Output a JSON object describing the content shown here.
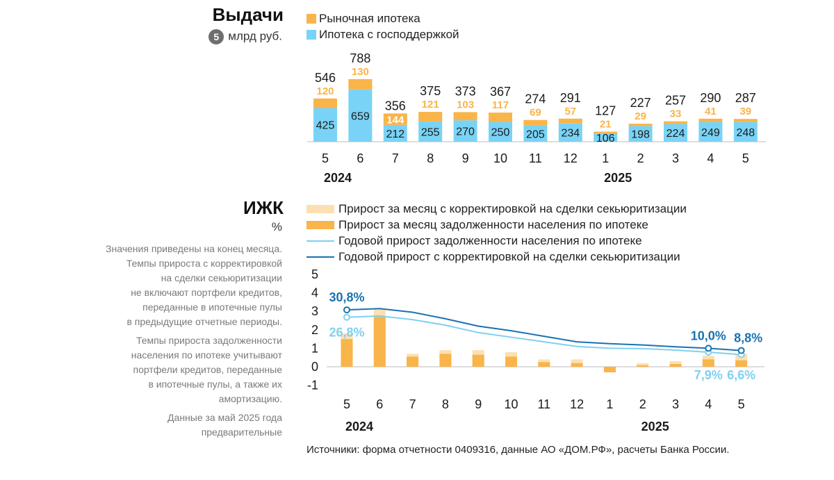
{
  "colors": {
    "market": "#f9b44a",
    "subsidized": "#79d3f6",
    "monthly_adjusted": "#fde0b2",
    "monthly": "#f9b44a",
    "yearly_light": "#7fd0f0",
    "yearly_dark": "#1a72b0",
    "axis": "#b0b0b0"
  },
  "issuance": {
    "title": "Выдачи",
    "badge": "5",
    "unit": "млрд руб.",
    "legend": [
      "Рыночная ипотека",
      "Ипотека с господдержкой"
    ]
  },
  "izhk": {
    "title": "ИЖК",
    "unit": "%",
    "legend": [
      "Прирост за месяц с корректировкой на сделки секьюритизации",
      "Прирост за месяц задолженности населения по ипотеке",
      "Годовой прирост задолженности населения по ипотеке",
      "Годовой прирост с корректировкой на сделки секьюритизации"
    ],
    "notes": [
      [
        "Значения приведены на конец месяца.",
        "Темпы прироста с корректировкой",
        "на сделки секьюритизации",
        "не включают портфели кредитов,",
        "переданные в ипотечные пулы",
        "в предыдущие отчетные периоды."
      ],
      [
        "Темпы прироста задолженности",
        "населения по ипотеке учитывают",
        "портфели кредитов, переданные",
        "в ипотечные пулы, а также их",
        "амортизацию."
      ],
      [
        "Данные за май 2025 года",
        "предварительные"
      ]
    ]
  },
  "source": "Источники: форма отчетности 0409316, данные АО «ДОМ.РФ», расчеты Банка России.",
  "chart_data": [
    {
      "type": "bar",
      "title": "Выдачи",
      "ylabel": "млрд руб.",
      "categories": [
        "5",
        "6",
        "7",
        "8",
        "9",
        "10",
        "11",
        "12",
        "1",
        "2",
        "3",
        "4",
        "5"
      ],
      "year_labels": [
        {
          "label": "2024",
          "category_index": 0
        },
        {
          "label": "2025",
          "category_index": 8
        }
      ],
      "stacked": true,
      "series": [
        {
          "name": "Ипотека с господдержкой",
          "values": [
            425,
            659,
            212,
            255,
            270,
            250,
            205,
            234,
            106,
            198,
            224,
            249,
            248
          ]
        },
        {
          "name": "Рыночная ипотека",
          "values": [
            120,
            130,
            144,
            121,
            103,
            117,
            69,
            57,
            21,
            29,
            33,
            41,
            39
          ]
        }
      ],
      "totals": [
        546,
        788,
        356,
        375,
        373,
        367,
        274,
        291,
        127,
        227,
        257,
        290,
        287
      ],
      "ylim": [
        0,
        800
      ]
    },
    {
      "type": "bar+line",
      "title": "ИЖК",
      "ylabel": "%",
      "categories": [
        "5",
        "6",
        "7",
        "8",
        "9",
        "10",
        "11",
        "12",
        "1",
        "2",
        "3",
        "4",
        "5"
      ],
      "year_labels": [
        {
          "label": "2024",
          "category_index": 0
        },
        {
          "label": "2025",
          "category_index": 9
        }
      ],
      "yticks": [
        -1,
        0,
        1,
        2,
        3,
        4,
        5
      ],
      "ylim": [
        -1,
        5
      ],
      "bars": [
        {
          "name": "Прирост за месяц с корректировкой на сделки секьюритизации",
          "values": [
            1.8,
            3.1,
            0.7,
            0.9,
            0.9,
            0.8,
            0.4,
            0.4,
            -0.2,
            0.2,
            0.3,
            0.6,
            0.7
          ]
        },
        {
          "name": "Прирост за месяц задолженности населения по ипотеке",
          "values": [
            1.5,
            2.7,
            0.55,
            0.7,
            0.65,
            0.55,
            0.25,
            0.2,
            -0.3,
            0.08,
            0.15,
            0.4,
            0.35
          ]
        }
      ],
      "lines": [
        {
          "name": "Годовой прирост задолженности населения по ипотеке",
          "values": [
            2.68,
            2.75,
            2.55,
            2.25,
            1.85,
            1.6,
            1.35,
            1.1,
            1.0,
            0.98,
            0.9,
            0.79,
            0.66
          ],
          "annotations": [
            {
              "category_index": 0,
              "label": "26,8%"
            },
            {
              "category_index": 11,
              "label": "7,9%"
            },
            {
              "category_index": 12,
              "label": "6,6%"
            }
          ]
        },
        {
          "name": "Годовой прирост с корректировкой на сделки секьюритизации",
          "values": [
            3.08,
            3.15,
            2.95,
            2.6,
            2.2,
            1.95,
            1.65,
            1.35,
            1.25,
            1.18,
            1.08,
            1.0,
            0.88
          ],
          "annotations": [
            {
              "category_index": 0,
              "label": "30,8%"
            },
            {
              "category_index": 11,
              "label": "10,0%"
            },
            {
              "category_index": 12,
              "label": "8,8%"
            }
          ]
        }
      ]
    }
  ]
}
